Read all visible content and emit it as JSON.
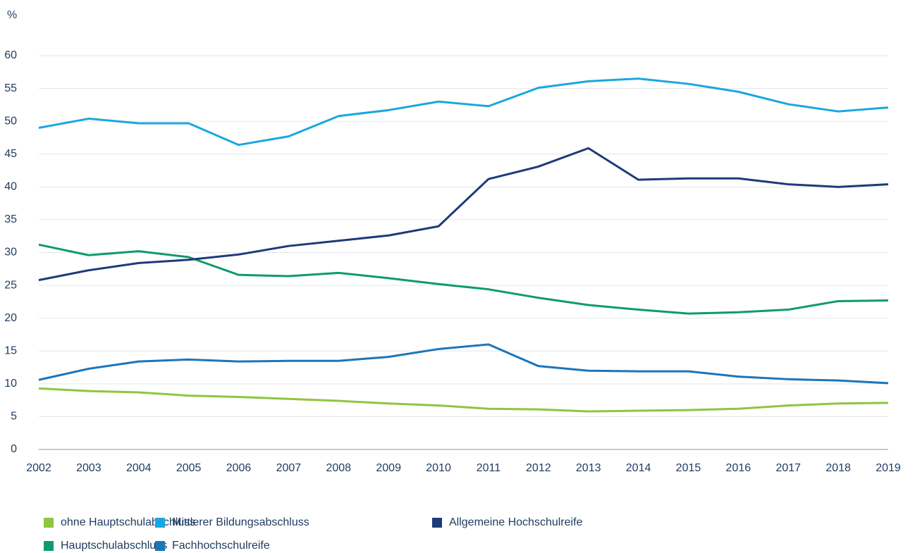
{
  "chart_data": {
    "type": "line",
    "y_label": "%",
    "x": [
      2002,
      2003,
      2004,
      2005,
      2006,
      2007,
      2008,
      2009,
      2010,
      2011,
      2012,
      2013,
      2014,
      2015,
      2016,
      2017,
      2018,
      2019
    ],
    "xlim": [
      2002,
      2019
    ],
    "xticks": [
      2002,
      2003,
      2004,
      2005,
      2006,
      2007,
      2008,
      2009,
      2010,
      2011,
      2012,
      2013,
      2014,
      2015,
      2016,
      2017,
      2018,
      2019
    ],
    "ylim": [
      0,
      60
    ],
    "yticks": [
      0,
      5,
      10,
      15,
      20,
      25,
      30,
      35,
      40,
      45,
      50,
      55,
      60
    ],
    "grid": true,
    "series": [
      {
        "name": "ohne Hauptschulabschluss",
        "color": "#8dc63f",
        "values": [
          9.3,
          8.9,
          8.7,
          8.2,
          8.0,
          7.7,
          7.4,
          7.0,
          6.7,
          6.2,
          6.1,
          5.8,
          5.9,
          6.0,
          6.2,
          6.7,
          7.0,
          7.1
        ]
      },
      {
        "name": "Hauptschulabschluss",
        "color": "#0f9a6e",
        "values": [
          31.2,
          29.6,
          30.2,
          29.3,
          26.6,
          26.4,
          26.9,
          26.1,
          25.2,
          24.4,
          23.1,
          22.0,
          21.3,
          20.7,
          20.9,
          21.3,
          22.6,
          22.7
        ]
      },
      {
        "name": "Mittlerer Bildungsabschluss",
        "color": "#1aa7e0",
        "values": [
          49.0,
          50.4,
          49.7,
          49.7,
          46.4,
          47.7,
          50.8,
          51.7,
          53.0,
          52.3,
          55.1,
          56.1,
          56.5,
          55.7,
          54.5,
          52.6,
          51.5,
          52.1
        ]
      },
      {
        "name": "Fachhochschulreife",
        "color": "#1b75bb",
        "values": [
          10.6,
          12.3,
          13.4,
          13.7,
          13.4,
          13.5,
          13.5,
          14.1,
          15.3,
          16.0,
          12.7,
          12.0,
          11.9,
          11.9,
          11.1,
          10.7,
          10.5,
          10.1
        ]
      },
      {
        "name": "Allgemeine Hochschulreife",
        "color": "#1f3a7a",
        "values": [
          25.8,
          27.3,
          28.4,
          28.9,
          29.7,
          31.0,
          31.8,
          32.6,
          34.0,
          41.2,
          43.1,
          45.9,
          41.1,
          41.3,
          41.3,
          40.4,
          40.0,
          40.4
        ]
      }
    ]
  }
}
